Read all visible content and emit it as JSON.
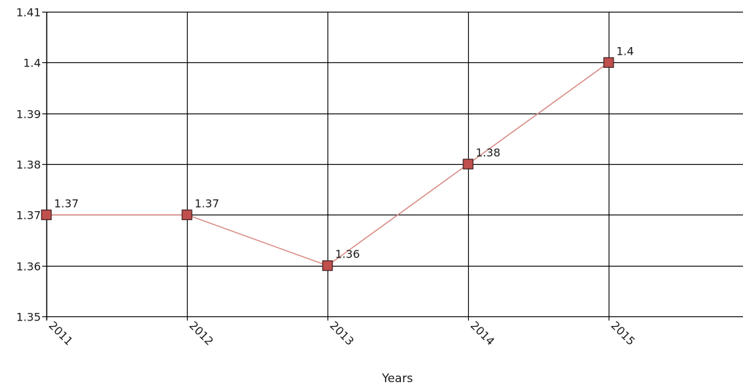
{
  "chart_data": {
    "type": "line",
    "title": "",
    "xlabel": "Years",
    "ylabel": "",
    "categories": [
      "2011",
      "2012",
      "2013",
      "2014",
      "2015"
    ],
    "series": [
      {
        "values": [
          1.37,
          1.37,
          1.36,
          1.38,
          1.4
        ],
        "data_labels": [
          "1.37",
          "1.37",
          "1.36",
          "1.38",
          "1.4"
        ],
        "line_color": "#d98b85",
        "marker_color": "#c0504d",
        "marker_shape": "square"
      }
    ],
    "ylim": [
      1.35,
      1.41
    ],
    "y_ticks": [
      1.35,
      1.36,
      1.37,
      1.38,
      1.39,
      1.4,
      1.41
    ],
    "y_tick_labels": [
      "1.35",
      "1.36",
      "1.37",
      "1.38",
      "1.39",
      "1.4",
      "1.41"
    ],
    "grid": true,
    "grid_color": "#000000",
    "legend": "none"
  }
}
